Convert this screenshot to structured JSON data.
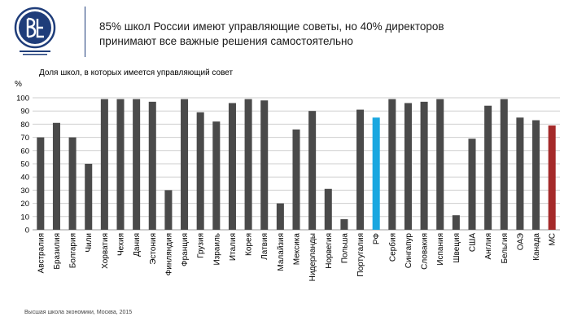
{
  "header": {
    "title_line1": "85% школ России имеют управляющие советы, но 40% директоров",
    "title_line2": "принимают все важные решения самостоятельно"
  },
  "brand": {
    "logo_icon": "hse-logo-icon",
    "logo_color": "#1f3d7a",
    "footer_text": "Высшая школа экономики, Москва, 2015"
  },
  "chart_data": {
    "type": "bar",
    "title": "Доля школ, в которых имеется управляющий совет",
    "ylabel": "%",
    "ylim": [
      0,
      100
    ],
    "yticks": [
      0,
      10,
      20,
      30,
      40,
      50,
      60,
      70,
      80,
      90,
      100
    ],
    "grid": true,
    "colors": {
      "default": "#4a4a4a",
      "highlight_rf": "#1aa7e0",
      "highlight_ms": "#a52a2a"
    },
    "categories": [
      "Австралия",
      "Бразилия",
      "Болгария",
      "Чили",
      "Хорватия",
      "Чехия",
      "Дания",
      "Эстония",
      "Финляндия",
      "Франция",
      "Грузия",
      "Израиль",
      "Италия",
      "Корея",
      "Латвия",
      "Малайзия",
      "Мексика",
      "Нидерланды",
      "Норвегия",
      "Польша",
      "Португалия",
      "РФ",
      "Сербия",
      "Сингапур",
      "Словакия",
      "Испания",
      "Швеция",
      "США",
      "Англия",
      "Бельгия",
      "ОАЭ",
      "Канада",
      "МС"
    ],
    "values": [
      70,
      81,
      70,
      50,
      99,
      99,
      99,
      97,
      30,
      99,
      89,
      82,
      96,
      99,
      98,
      20,
      76,
      90,
      31,
      8,
      91,
      85,
      99,
      96,
      97,
      99,
      11,
      69,
      94,
      99,
      85,
      83,
      79
    ],
    "highlight": {
      "РФ": "highlight_rf",
      "МС": "highlight_ms"
    }
  }
}
